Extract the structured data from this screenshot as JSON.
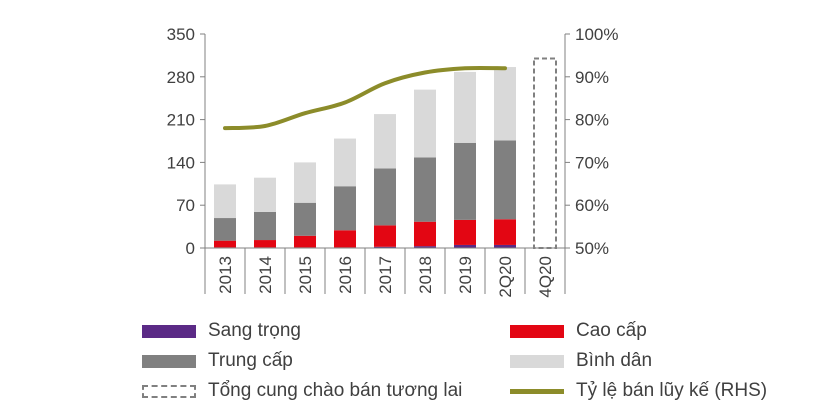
{
  "chart_data": {
    "type": "bar",
    "stacked": true,
    "categories": [
      "2013",
      "2014",
      "2015",
      "2016",
      "2017",
      "2018",
      "2019",
      "2Q20",
      "4Q20"
    ],
    "ylim_left": [
      0,
      350
    ],
    "yticks_left": [
      "0",
      "70",
      "140",
      "210",
      "280",
      "350"
    ],
    "ylim_right": [
      0.5,
      1.0
    ],
    "yticks_right": [
      "50%",
      "60%",
      "70%",
      "80%",
      "90%",
      "100%"
    ],
    "series": [
      {
        "name": "Sang trọng",
        "color": "#5b2a86",
        "values": [
          1,
          1,
          1,
          1,
          2,
          3,
          5,
          5,
          null
        ]
      },
      {
        "name": "Cao cấp",
        "color": "#e30613",
        "values": [
          11,
          12,
          19,
          28,
          35,
          40,
          41,
          42,
          null
        ]
      },
      {
        "name": "Trung cấp",
        "color": "#808080",
        "values": [
          37,
          46,
          54,
          72,
          93,
          105,
          126,
          129,
          null
        ]
      },
      {
        "name": "Bình dân",
        "color": "#d9d9d9",
        "values": [
          55,
          56,
          66,
          78,
          89,
          111,
          116,
          120,
          null
        ]
      },
      {
        "name": "Tổng cung chào bán tương lai",
        "color": "#808080",
        "style": "dashed",
        "values": [
          null,
          null,
          null,
          null,
          null,
          null,
          null,
          null,
          310
        ]
      }
    ],
    "line_series": {
      "name": "Tỷ lệ bán lũy kế (RHS)",
      "color": "#8c8c2a",
      "axis": "right",
      "values": [
        0.78,
        0.785,
        0.815,
        0.84,
        0.885,
        0.91,
        0.92,
        0.92,
        null
      ]
    },
    "grid": false,
    "legend_position": "bottom"
  }
}
